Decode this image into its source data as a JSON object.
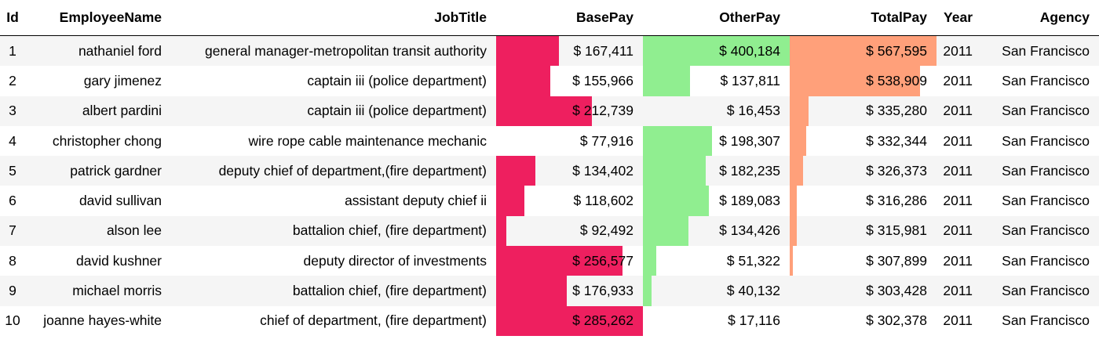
{
  "colors": {
    "base_bar": "#ee1f5f",
    "other_bar": "#90ee90",
    "total_bar": "#ffa07a",
    "header_rule": "#000000",
    "stripe": "#f5f5f5"
  },
  "columns": [
    "Id",
    "EmployeeName",
    "JobTitle",
    "BasePay",
    "OtherPay",
    "TotalPay",
    "Year",
    "Agency"
  ],
  "rows": [
    {
      "id": "1",
      "name": "nathaniel ford",
      "job": "general manager-metropolitan transit authority",
      "base": "$ 167,411",
      "other": "$ 400,184",
      "total": "$ 567,595",
      "year": "2011",
      "agency": "San Francisco",
      "base_fill": 0.43,
      "other_fill": 1.0,
      "total_fill": 1.0
    },
    {
      "id": "2",
      "name": "gary jimenez",
      "job": "captain iii (police department)",
      "base": "$ 155,966",
      "other": "$ 137,811",
      "total": "$ 538,909",
      "year": "2011",
      "agency": "San Francisco",
      "base_fill": 0.37,
      "other_fill": 0.32,
      "total_fill": 0.89
    },
    {
      "id": "3",
      "name": "albert pardini",
      "job": "captain iii (police department)",
      "base": "$ 212,739",
      "other": "$ 16,453",
      "total": "$ 335,280",
      "year": "2011",
      "agency": "San Francisco",
      "base_fill": 0.65,
      "other_fill": 0.0,
      "total_fill": 0.13
    },
    {
      "id": "4",
      "name": "christopher chong",
      "job": "wire rope cable maintenance mechanic",
      "base": "$ 77,916",
      "other": "$ 198,307",
      "total": "$ 332,344",
      "year": "2011",
      "agency": "San Francisco",
      "base_fill": 0.0,
      "other_fill": 0.47,
      "total_fill": 0.11
    },
    {
      "id": "5",
      "name": "patrick gardner",
      "job": "deputy chief of department,(fire department)",
      "base": "$ 134,402",
      "other": "$ 182,235",
      "total": "$ 326,373",
      "year": "2011",
      "agency": "San Francisco",
      "base_fill": 0.27,
      "other_fill": 0.43,
      "total_fill": 0.09
    },
    {
      "id": "6",
      "name": "david sullivan",
      "job": "assistant deputy chief ii",
      "base": "$ 118,602",
      "other": "$ 189,083",
      "total": "$ 316,286",
      "year": "2011",
      "agency": "San Francisco",
      "base_fill": 0.19,
      "other_fill": 0.45,
      "total_fill": 0.05
    },
    {
      "id": "7",
      "name": "alson lee",
      "job": "battalion chief, (fire department)",
      "base": "$ 92,492",
      "other": "$ 134,426",
      "total": "$ 315,981",
      "year": "2011",
      "agency": "San Francisco",
      "base_fill": 0.07,
      "other_fill": 0.31,
      "total_fill": 0.05
    },
    {
      "id": "8",
      "name": "david kushner",
      "job": "deputy director of investments",
      "base": "$ 256,577",
      "other": "$ 51,322",
      "total": "$ 307,899",
      "year": "2011",
      "agency": "San Francisco",
      "base_fill": 0.86,
      "other_fill": 0.09,
      "total_fill": 0.02
    },
    {
      "id": "9",
      "name": "michael morris",
      "job": "battalion chief, (fire department)",
      "base": "$ 176,933",
      "other": "$ 40,132",
      "total": "$ 303,428",
      "year": "2011",
      "agency": "San Francisco",
      "base_fill": 0.48,
      "other_fill": 0.06,
      "total_fill": 0.0
    },
    {
      "id": "10",
      "name": "joanne hayes-white",
      "job": "chief of department, (fire department)",
      "base": "$ 285,262",
      "other": "$ 17,116",
      "total": "$ 302,378",
      "year": "2011",
      "agency": "San Francisco",
      "base_fill": 1.0,
      "other_fill": 0.0,
      "total_fill": 0.0
    }
  ]
}
